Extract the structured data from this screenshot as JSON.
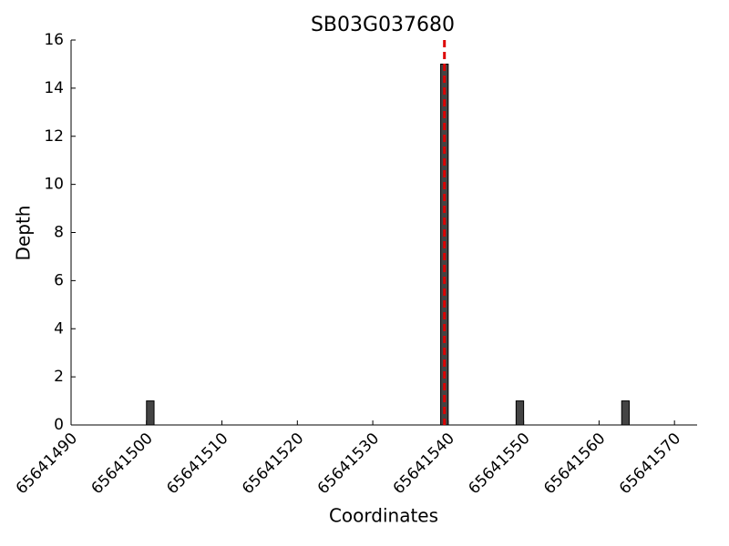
{
  "chart_data": {
    "type": "bar",
    "title": "SB03G037680",
    "x_label": "Coordinates",
    "y_label": "Depth",
    "x": [
      65641500,
      65641539,
      65641549,
      65641563
    ],
    "values": [
      1,
      15,
      1,
      1
    ],
    "color": "#444444",
    "marker_x": 65641539.5,
    "marker_color": "#dd0000",
    "xlim": [
      65641490,
      65641573
    ],
    "xticks": [
      65641490,
      65641500,
      65641510,
      65641520,
      65641530,
      65641540,
      65641550,
      65641560,
      65641570
    ],
    "ylim": [
      0,
      16
    ],
    "yticks": [
      0,
      2,
      4,
      6,
      8,
      10,
      12,
      14,
      16
    ]
  }
}
